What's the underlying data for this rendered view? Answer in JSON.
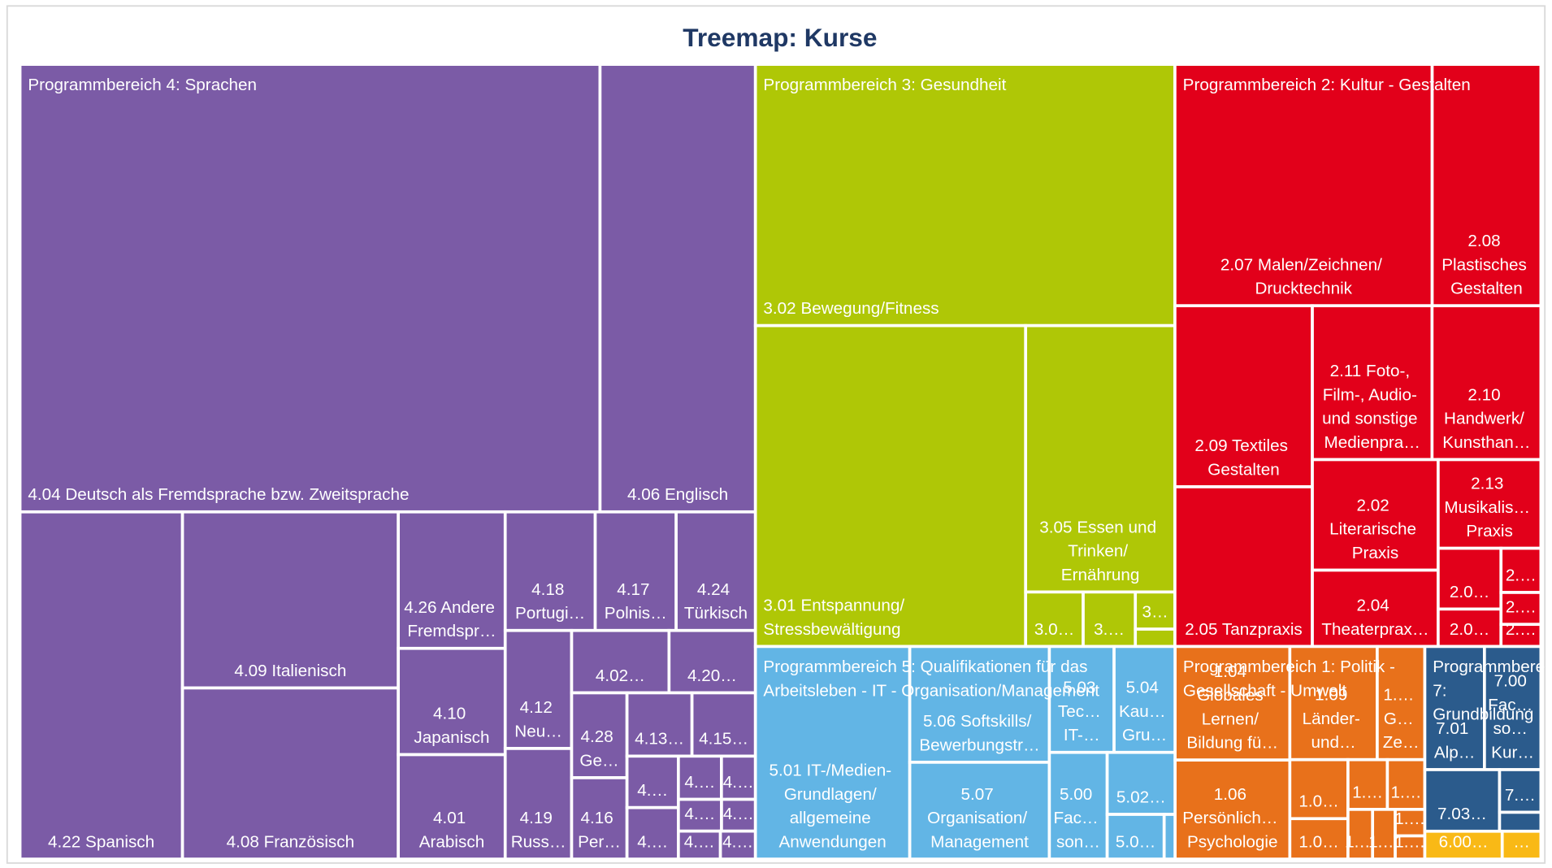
{
  "chart_data": {
    "type": "treemap",
    "title": "Treemap: Kurse",
    "series": [
      {
        "name": "Programmbereich 4: Sprachen",
        "color": "#7b5ba6",
        "labels": [
          "4.04 Deutsch als Fremdsprache bzw. Zweitsprache",
          "4.06 Englisch",
          "4.22 Spanisch",
          "4.09 Italienisch",
          "4.08 Französisch",
          "4.26 Andere Fremdspr…",
          "4.10 Japanisch",
          "4.01 Arabisch",
          "4.18 Portugi…",
          "4.17 Polnis…",
          "4.24 Türkisch",
          "4.12 Neu…",
          "4.19 Russ…",
          "4.02…",
          "4.20…",
          "4.28 Ge…",
          "4.16 Per…",
          "4.13…",
          "4.15…",
          "4.…",
          "4.…",
          "4.…",
          "4.…",
          "4.…",
          "4.…",
          "4.…",
          "4.…"
        ],
        "values": [
          265,
          71,
          57.6,
          38.8,
          37.7,
          14.9,
          11.6,
          11.4,
          10.9,
          9.8,
          9.6,
          8,
          7.5,
          6.2,
          5.5,
          4.8,
          4.6,
          4.2,
          4.1,
          2.7,
          2.7,
          1.9,
          1.5,
          1.4,
          1.1,
          1.2,
          1.0
        ]
      },
      {
        "name": "Programmbereich 3: Gesundheit",
        "color": "#afc706",
        "labels": [
          "3.02 Bewegung/Fitness",
          "3.01 Entspannung/ Stressbewältigung",
          "3.05 Essen und Trinken/ Ernährung",
          "3.0…",
          "3.…",
          "3…",
          null
        ],
        "values": [
          111.9,
          88.5,
          40.6,
          3.2,
          2.9,
          1.5,
          0.7
        ]
      },
      {
        "name": "Programmbereich 2: Kultur - Gestalten",
        "color": "#e2001a",
        "labels": [
          "2.07 Malen/Zeichnen/ Drucktechnik",
          "2.08 Plastisches Gestalten",
          "2.09 Textiles Gestalten",
          "2.05 Tanzpraxis",
          "2.11 Foto-, Film-, Audio- und sonstige Medienpra…",
          "2.10 Handwerk/ Kunsthan…",
          "2.02 Literarische Praxis",
          "2.04 Theaterprax…",
          "2.13 Musikalis… Praxis",
          "2.0…",
          "2.0…",
          "2.…",
          "2.…",
          "2.…"
        ],
        "values": [
          63.4,
          26.8,
          25.4,
          22.4,
          18.8,
          17.1,
          14.2,
          9.8,
          9.3,
          3.9,
          2.4,
          1.8,
          1.3,
          0.9
        ]
      },
      {
        "name": "Programmbereich 5: Qualifikationen für das Arbeitsleben - IT - Organisation/Management",
        "color": "#62b5e5",
        "labels": [
          "5.01 IT-/Medien- Grundlagen/ allgemeine Anwendungen",
          "5.06 Softskills/ Bewerbungstr…",
          "5.07 Organisation/ Management",
          "5.03 Tec… IT-…",
          "5.04 Kau… Gru…",
          "5.00 Fac… son…",
          "5.02…",
          "5.0…",
          null
        ],
        "values": [
          33.5,
          16.5,
          13.8,
          7.0,
          6.6,
          6.3,
          4.3,
          2.6,
          0.5
        ]
      },
      {
        "name": "Programmbereich 1: Politik - Gesellschaft - Umwelt",
        "color": "#e8711b",
        "labels": [
          "1.04 Globales Lernen/ Bildung fü…",
          "1.06 Persönlich… Psychologie",
          "1.09 Länder- und…",
          "1.… G… Ze…",
          "1.0…",
          "1.0…",
          "1.…",
          "1.…",
          "1.…",
          "1.…",
          "1.…",
          "1.…"
        ],
        "values": [
          13.3,
          11.6,
          10.1,
          5.5,
          3.5,
          2.4,
          2.0,
          1.9,
          1.25,
          1.15,
          0.8,
          0.7
        ]
      },
      {
        "name": "Programmbereich 7: Grundbildung",
        "color": "#2b5b8c",
        "labels": [
          "7.01 Alp…",
          "7.00 Fac… so… Kur…",
          "7.03…",
          "7.…",
          null
        ],
        "values": [
          7.5,
          7.1,
          4.7,
          1.8,
          0.8
        ]
      },
      {
        "name": null,
        "color": "#f9b916",
        "labels": [
          "6.00…",
          "…"
        ],
        "values": [
          2.2,
          1.1
        ]
      }
    ]
  }
}
